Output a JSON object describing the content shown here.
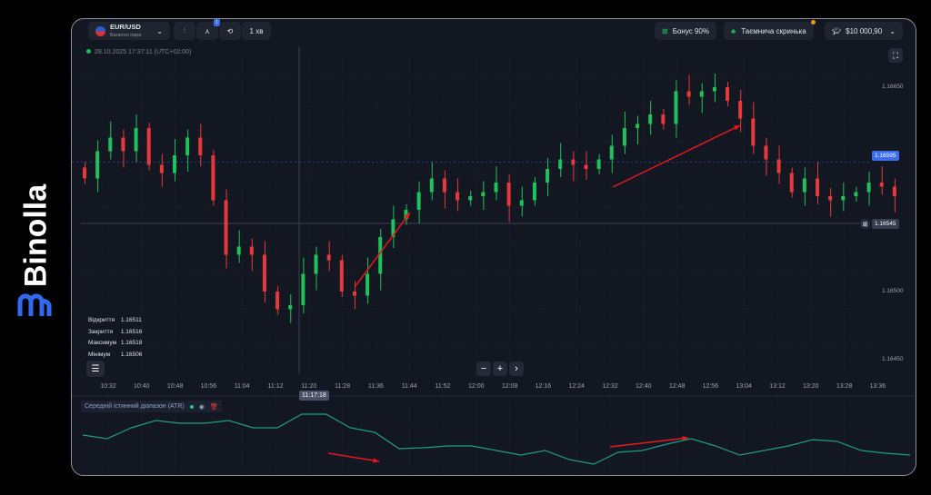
{
  "brand": {
    "name": "Binolla"
  },
  "toolbar": {
    "pair": "EUR/USD",
    "pair_sub": "Валютні пари",
    "indicator_badge": "1",
    "timeframe": "1 хв",
    "bonus": "Бонус 90%",
    "mystery_box": "Таємнича скринька",
    "balance": "$10 000,90"
  },
  "timestamp": "28.10.2025 17:37:11 (UTC+02:00)",
  "ohlc": [
    {
      "k": "Відкриття",
      "v": "1.16511"
    },
    {
      "k": "Закриття",
      "v": "1.16516"
    },
    {
      "k": "Максимум",
      "v": "1.16518"
    },
    {
      "k": "Мінімум",
      "v": "1.16506"
    }
  ],
  "crosshair": {
    "time": "11:17:18",
    "price": "1.16545"
  },
  "current_price": "1.16595",
  "zoom_controls": {
    "minus": "−",
    "plus": "+",
    "next": "›"
  },
  "atr": {
    "label": "Середній істинний діапазон (ATR)",
    "values": [
      42,
      38,
      50,
      58,
      55,
      55,
      58,
      50,
      50,
      65,
      65,
      50,
      45,
      27,
      28,
      30,
      30,
      25,
      20,
      25,
      15,
      10,
      23,
      25,
      32,
      38,
      30,
      20,
      25,
      30,
      37,
      35,
      25,
      22,
      20
    ]
  },
  "colors": {
    "up": "#26a69a",
    "up_candle": "#1ec25a",
    "down": "#e8393a",
    "accent": "#3b82f6",
    "arrow": "#e8161e",
    "atr_line": "#1f9b85"
  },
  "chart_data": {
    "type": "candlestick",
    "price_ticks": [
      "1.16650",
      "1.16500",
      "1.16450"
    ],
    "ylim": [
      1.1643,
      1.1668
    ],
    "time_ticks": [
      "10:32",
      "10:40",
      "10:48",
      "10:56",
      "11:04",
      "11:12",
      "11:20",
      "11:28",
      "11:36",
      "11:44",
      "11:52",
      "12:00",
      "12:08",
      "12:16",
      "12:24",
      "12:32",
      "12:40",
      "12:48",
      "12:56",
      "13:04",
      "13:12",
      "13:20",
      "13:28",
      "13:36"
    ],
    "closes": [
      1.16583,
      1.16603,
      1.16613,
      1.16603,
      1.1662,
      1.16593,
      1.16587,
      1.166,
      1.16613,
      1.166,
      1.16567,
      1.16527,
      1.16533,
      1.16527,
      1.165,
      1.16487,
      1.1649,
      1.16513,
      1.16527,
      1.16523,
      1.165,
      1.16497,
      1.16513,
      1.1654,
      1.16553,
      1.1656,
      1.16573,
      1.16583,
      1.16573,
      1.16567,
      1.1657,
      1.16573,
      1.1658,
      1.16563,
      1.16567,
      1.1658,
      1.1659,
      1.16597,
      1.16593,
      1.1659,
      1.16597,
      1.16607,
      1.1662,
      1.16623,
      1.1663,
      1.16623,
      1.16647,
      1.16643,
      1.16647,
      1.1665,
      1.1664,
      1.16627,
      1.16607,
      1.16597,
      1.16587,
      1.16573,
      1.16583,
      1.1657,
      1.16567,
      1.1657,
      1.16573,
      1.1658,
      1.16577,
      1.1657
    ]
  }
}
